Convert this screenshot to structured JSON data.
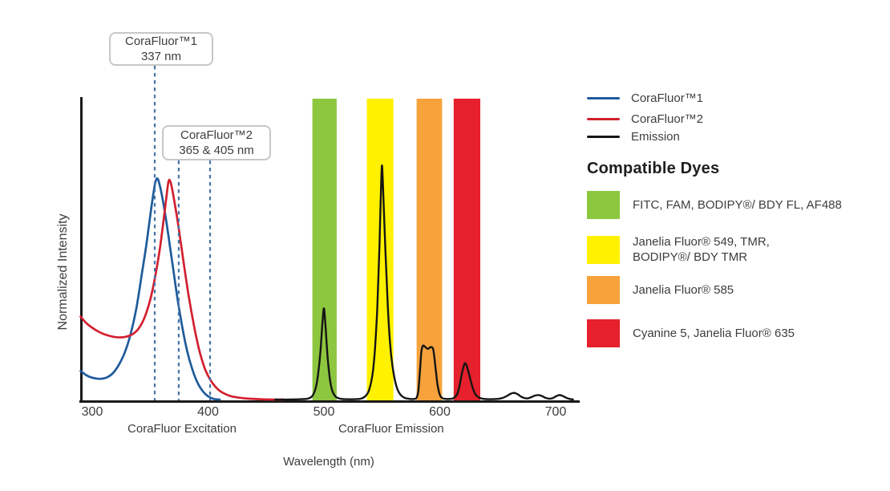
{
  "chart_data": {
    "type": "line",
    "title": "",
    "xlabel": "Wavelength (nm)",
    "ylabel": "Normalized Intensity",
    "x_ticks": [
      300,
      400,
      500,
      600,
      700
    ],
    "xlim": [
      290,
      720
    ],
    "ylim": [
      0,
      1
    ],
    "grid": false,
    "legend_position": "right",
    "dash_color": "#4474aa",
    "axis_color": "#1a1a1a",
    "section_labels": [
      {
        "text": "CoraFluor Excitation",
        "center_nm": 377.5
      },
      {
        "text": "CoraFluor Emission",
        "center_nm": 558
      }
    ],
    "annotations": [
      {
        "line1": "CoraFluor™1",
        "line2": "337 nm",
        "dash_lines_nm": [
          354
        ]
      },
      {
        "line1": "CoraFluor™2",
        "line2": "365 & 405 nm",
        "dash_lines_nm": [
          374.7,
          401.7
        ]
      }
    ],
    "bands": [
      {
        "id": "green",
        "color": "#8dc63f",
        "x_range": [
          490,
          511
        ]
      },
      {
        "id": "yellow",
        "color": "#fff100",
        "x_range": [
          537,
          560
        ]
      },
      {
        "id": "orange",
        "color": "#f7a23b",
        "x_range": [
          580,
          602
        ]
      },
      {
        "id": "red",
        "color": "#e6202d",
        "x_range": [
          612,
          635
        ]
      }
    ],
    "series": [
      {
        "id": "corafluor1-excitation",
        "name": "CoraFluor™1",
        "color": "#1f5b9b",
        "width": 2.7,
        "points": [
          [
            290,
            0.095
          ],
          [
            294,
            0.083
          ],
          [
            298,
            0.075
          ],
          [
            303,
            0.07
          ],
          [
            308,
            0.069
          ],
          [
            313,
            0.074
          ],
          [
            318,
            0.088
          ],
          [
            323,
            0.115
          ],
          [
            328,
            0.155
          ],
          [
            333,
            0.215
          ],
          [
            338,
            0.3
          ],
          [
            343,
            0.42
          ],
          [
            347,
            0.52
          ],
          [
            351,
            0.635
          ],
          [
            354,
            0.71
          ],
          [
            356,
            0.733
          ],
          [
            358,
            0.715
          ],
          [
            361,
            0.66
          ],
          [
            364,
            0.59
          ],
          [
            367,
            0.51
          ],
          [
            370,
            0.43
          ],
          [
            374,
            0.325
          ],
          [
            378,
            0.235
          ],
          [
            382,
            0.16
          ],
          [
            386,
            0.105
          ],
          [
            390,
            0.063
          ],
          [
            394,
            0.035
          ],
          [
            398,
            0.017
          ],
          [
            402,
            0.006
          ],
          [
            406,
            0.001
          ],
          [
            410,
            0
          ]
        ]
      },
      {
        "id": "corafluor2-excitation",
        "name": "CoraFluor™2",
        "color": "#d2202f",
        "width": 2.7,
        "points": [
          [
            290,
            0.275
          ],
          [
            295,
            0.253
          ],
          [
            300,
            0.238
          ],
          [
            305,
            0.226
          ],
          [
            310,
            0.217
          ],
          [
            315,
            0.211
          ],
          [
            320,
            0.207
          ],
          [
            325,
            0.206
          ],
          [
            330,
            0.209
          ],
          [
            335,
            0.217
          ],
          [
            340,
            0.235
          ],
          [
            345,
            0.27
          ],
          [
            350,
            0.33
          ],
          [
            354,
            0.4
          ],
          [
            358,
            0.49
          ],
          [
            361,
            0.575
          ],
          [
            364,
            0.67
          ],
          [
            366,
            0.725
          ],
          [
            368,
            0.715
          ],
          [
            371,
            0.655
          ],
          [
            374,
            0.585
          ],
          [
            377,
            0.505
          ],
          [
            380,
            0.425
          ],
          [
            383,
            0.35
          ],
          [
            386,
            0.283
          ],
          [
            389,
            0.222
          ],
          [
            392,
            0.17
          ],
          [
            395,
            0.128
          ],
          [
            398,
            0.095
          ],
          [
            402,
            0.065
          ],
          [
            406,
            0.044
          ],
          [
            410,
            0.029
          ],
          [
            415,
            0.018
          ],
          [
            420,
            0.011
          ],
          [
            427,
            0.006
          ],
          [
            435,
            0.003
          ],
          [
            445,
            0.001
          ],
          [
            455,
            0.0
          ],
          [
            465,
            0
          ]
        ]
      },
      {
        "id": "emission",
        "name": "Emission",
        "color": "#151515",
        "width": 2.4,
        "points": [
          [
            458,
            0
          ],
          [
            470,
            0
          ],
          [
            480,
            0.001
          ],
          [
            486,
            0.003
          ],
          [
            490,
            0.012
          ],
          [
            493,
            0.04
          ],
          [
            495,
            0.085
          ],
          [
            497,
            0.16
          ],
          [
            499,
            0.27
          ],
          [
            500,
            0.302
          ],
          [
            501,
            0.265
          ],
          [
            503,
            0.15
          ],
          [
            505,
            0.072
          ],
          [
            507,
            0.032
          ],
          [
            510,
            0.01
          ],
          [
            514,
            0.003
          ],
          [
            519,
            0.001
          ],
          [
            526,
            0.001
          ],
          [
            532,
            0.003
          ],
          [
            536,
            0.012
          ],
          [
            539,
            0.032
          ],
          [
            542,
            0.085
          ],
          [
            544,
            0.165
          ],
          [
            546,
            0.3
          ],
          [
            548,
            0.52
          ],
          [
            549,
            0.66
          ],
          [
            550,
            0.775
          ],
          [
            551,
            0.705
          ],
          [
            553,
            0.5
          ],
          [
            555,
            0.32
          ],
          [
            557,
            0.19
          ],
          [
            559,
            0.115
          ],
          [
            562,
            0.052
          ],
          [
            565,
            0.022
          ],
          [
            569,
            0.007
          ],
          [
            574,
            0.002
          ],
          [
            578,
            0.002
          ],
          [
            580,
            0.006
          ],
          [
            581.5,
            0.03
          ],
          [
            583,
            0.1
          ],
          [
            584,
            0.155
          ],
          [
            585,
            0.175
          ],
          [
            586,
            0.179
          ],
          [
            588,
            0.172
          ],
          [
            590,
            0.168
          ],
          [
            592,
            0.174
          ],
          [
            594,
            0.17
          ],
          [
            595,
            0.15
          ],
          [
            596.5,
            0.1
          ],
          [
            598,
            0.05
          ],
          [
            600,
            0.016
          ],
          [
            602,
            0.005
          ],
          [
            605,
            0.002
          ],
          [
            609,
            0.002
          ],
          [
            612,
            0.005
          ],
          [
            615,
            0.018
          ],
          [
            617,
            0.045
          ],
          [
            619,
            0.085
          ],
          [
            621,
            0.115
          ],
          [
            622,
            0.12
          ],
          [
            623,
            0.114
          ],
          [
            625,
            0.088
          ],
          [
            627,
            0.058
          ],
          [
            629,
            0.032
          ],
          [
            631,
            0.016
          ],
          [
            634,
            0.006
          ],
          [
            638,
            0.002
          ],
          [
            643,
            0.001
          ],
          [
            650,
            0.002
          ],
          [
            654,
            0.005
          ],
          [
            658,
            0.012
          ],
          [
            661,
            0.019
          ],
          [
            664,
            0.022
          ],
          [
            667,
            0.018
          ],
          [
            670,
            0.01
          ],
          [
            673,
            0.005
          ],
          [
            676,
            0.004
          ],
          [
            679,
            0.008
          ],
          [
            682,
            0.013
          ],
          [
            685,
            0.015
          ],
          [
            688,
            0.012
          ],
          [
            691,
            0.006
          ],
          [
            694,
            0.003
          ],
          [
            697,
            0.004
          ],
          [
            700,
            0.01
          ],
          [
            703,
            0.015
          ],
          [
            706,
            0.012
          ],
          [
            709,
            0.006
          ],
          [
            712,
            0.002
          ],
          [
            715,
            0
          ]
        ]
      }
    ]
  },
  "legend": {
    "items": [
      {
        "id": "corafluor1",
        "label": "CoraFluor™1",
        "color": "#1f5b9b"
      },
      {
        "id": "corafluor2",
        "label": "CoraFluor™2",
        "color": "#d2202f"
      },
      {
        "id": "emission",
        "label": "Emission",
        "color": "#151515"
      }
    ]
  },
  "dyes": {
    "heading": "Compatible Dyes",
    "items": [
      {
        "id": "green",
        "color": "#8dc63f",
        "label": "FITC, FAM, BODIPY®/ BDY FL, AF488"
      },
      {
        "id": "yellow",
        "color": "#fff100",
        "label": "Janelia Fluor® 549, TMR,\nBODIPY®/ BDY TMR"
      },
      {
        "id": "orange",
        "color": "#f7a23b",
        "label": "Janelia Fluor® 585"
      },
      {
        "id": "red",
        "color": "#e6202d",
        "label": "Cyanine 5, Janelia Fluor® 635"
      }
    ]
  }
}
